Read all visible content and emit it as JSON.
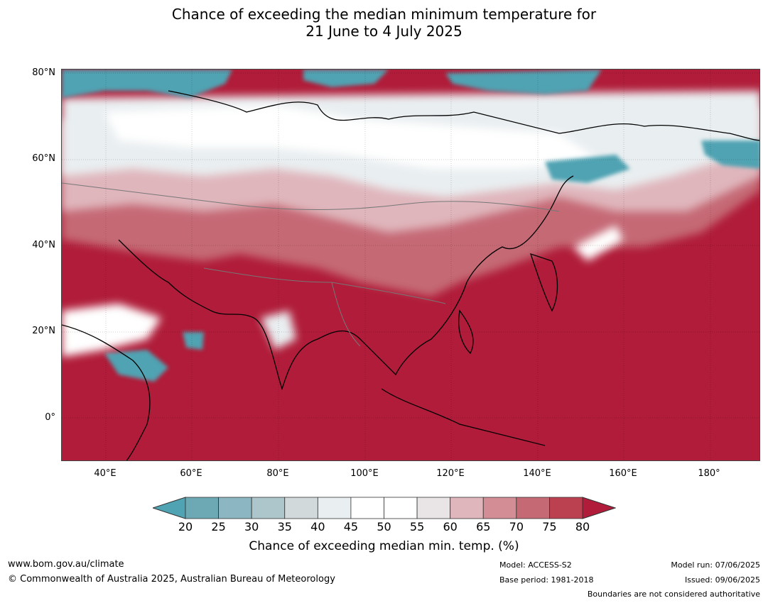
{
  "title_line1": "Chance of exceeding the median minimum temperature for",
  "title_line2": "21 June to 4 July 2025",
  "lat_labels": [
    "80°N",
    "60°N",
    "40°N",
    "20°N",
    "0°"
  ],
  "lon_labels": [
    "40°E",
    "60°E",
    "80°E",
    "100°E",
    "120°E",
    "140°E",
    "160°E",
    "180°"
  ],
  "colorbar": {
    "ticks": [
      "20",
      "25",
      "30",
      "35",
      "40",
      "45",
      "50",
      "55",
      "60",
      "65",
      "70",
      "75",
      "80"
    ],
    "colors": [
      "#4fa3b2",
      "#6da9b5",
      "#8cb6c1",
      "#adc6cc",
      "#d2d9db",
      "#e9eef0",
      "#ffffff",
      "#ffffff",
      "#e9e5e7",
      "#dfb6bc",
      "#d38d95",
      "#c56974",
      "#bb4150",
      "#b01c39"
    ],
    "label": "Chance of exceeding median min. temp. (%)"
  },
  "map_colors": {
    "high": "#b01c39",
    "high_mid": "#c56974",
    "mid": "#dfb6bc",
    "neutral": "#e9eef0",
    "low": "#4fa3b2"
  },
  "footer": {
    "website": "www.bom.gov.au/climate",
    "copyright": "© Commonwealth of Australia 2025, Australian Bureau of Meteorology",
    "model": "Model: ACCESS-S2",
    "base_period": "Base period: 1981-2018",
    "model_run": "Model run: 07/06/2025",
    "issued": "Issued: 09/06/2025",
    "disclaimer": "Boundaries are not considered authoritative"
  }
}
